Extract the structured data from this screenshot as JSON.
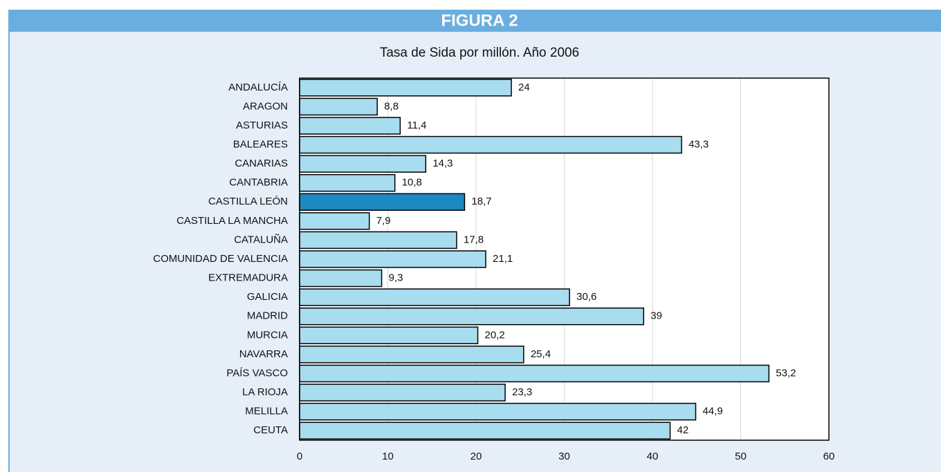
{
  "chart_data": {
    "type": "barh",
    "header": "FIGURA 2",
    "title": "Tasa de Sida por millón. Año 2006",
    "categories": [
      "ANDALUCÍA",
      "ARAGON",
      "ASTURIAS",
      "BALEARES",
      "CANARIAS",
      "CANTABRIA",
      "CASTILLA LEÓN",
      "CASTILLA LA MANCHA",
      "CATALUÑA",
      "COMUNIDAD DE VALENCIA",
      "EXTREMADURA",
      "GALICIA",
      "MADRID",
      "MURCIA",
      "NAVARRA",
      "PAÍS VASCO",
      "LA RIOJA",
      "MELILLA",
      "CEUTA"
    ],
    "values": [
      24,
      8.8,
      11.4,
      43.3,
      14.3,
      10.8,
      18.7,
      7.9,
      17.8,
      21.1,
      9.3,
      30.6,
      39,
      20.2,
      25.4,
      53.2,
      23.3,
      44.9,
      42
    ],
    "value_labels": [
      "24",
      "8,8",
      "11,4",
      "43,3",
      "14,3",
      "10,8",
      "18,7",
      "7,9",
      "17,8",
      "21,1",
      "9,3",
      "30,6",
      "39",
      "20,2",
      "25,4",
      "53,2",
      "23,3",
      "44,9",
      "42"
    ],
    "colors": [
      "#a8dcef",
      "#a8dcef",
      "#a8dcef",
      "#a8dcef",
      "#a8dcef",
      "#a8dcef",
      "#1e88c0",
      "#a8dcef",
      "#a8dcef",
      "#a8dcef",
      "#a8dcef",
      "#a8dcef",
      "#a8dcef",
      "#a8dcef",
      "#a8dcef",
      "#a8dcef",
      "#a8dcef",
      "#a8dcef",
      "#a8dcef"
    ],
    "xlim": [
      0,
      60
    ],
    "xticks": [
      0,
      10,
      20,
      30,
      40,
      50,
      60
    ],
    "grid": true
  }
}
